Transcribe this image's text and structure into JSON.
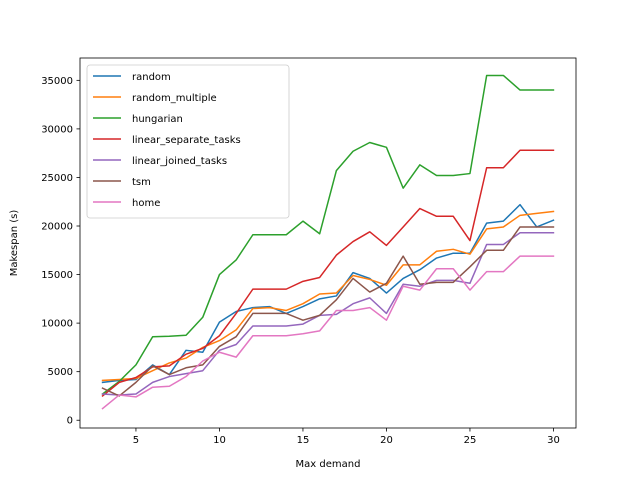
{
  "chart_data": {
    "type": "line",
    "xlabel": "Max demand",
    "ylabel": "Makespan (s)",
    "xlim": [
      1.65,
      31.35
    ],
    "ylim": [
      -800,
      37300
    ],
    "xticks": [
      5,
      10,
      15,
      20,
      25,
      30
    ],
    "yticks": [
      0,
      5000,
      10000,
      15000,
      20000,
      25000,
      30000,
      35000
    ],
    "grid": false,
    "legend_position": "top-left",
    "x": [
      3,
      4,
      5,
      6,
      7,
      8,
      9,
      10,
      11,
      12,
      13,
      14,
      15,
      16,
      17,
      18,
      19,
      20,
      21,
      22,
      23,
      24,
      25,
      26,
      27,
      28,
      29,
      30
    ],
    "series": [
      {
        "name": "random",
        "color": "#1f77b4",
        "values": [
          3900,
          4100,
          4200,
          5700,
          4700,
          7200,
          7000,
          10100,
          11200,
          11600,
          11700,
          11000,
          11700,
          12500,
          12800,
          15200,
          14600,
          13100,
          14600,
          15500,
          16700,
          17200,
          17200,
          20300,
          20500,
          22200,
          19900,
          20600
        ]
      },
      {
        "name": "random_multiple",
        "color": "#ff7f0e",
        "values": [
          4100,
          4200,
          4300,
          5100,
          5900,
          6400,
          7500,
          8200,
          9300,
          11500,
          11600,
          11300,
          12000,
          13000,
          13100,
          14900,
          14500,
          13900,
          16000,
          16000,
          17400,
          17600,
          17100,
          19700,
          19900,
          21100,
          21300,
          21500
        ]
      },
      {
        "name": "hungarian",
        "color": "#2ca02c",
        "values": [
          2700,
          4000,
          5700,
          8600,
          8650,
          8750,
          10600,
          15000,
          16500,
          19100,
          19100,
          19100,
          20500,
          19200,
          25700,
          27700,
          28600,
          28100,
          23900,
          26300,
          25200,
          25200,
          25400,
          35500,
          35500,
          34000,
          34000,
          34000
        ]
      },
      {
        "name": "linear_separate_tasks",
        "color": "#d62728",
        "values": [
          2500,
          3900,
          4400,
          5500,
          5600,
          6800,
          7400,
          8700,
          11000,
          13500,
          13500,
          13500,
          14300,
          14700,
          17000,
          18400,
          19400,
          18000,
          19900,
          21800,
          21000,
          21000,
          18500,
          26000,
          26000,
          27800,
          27800,
          27800
        ]
      },
      {
        "name": "linear_joined_tasks",
        "color": "#9467bd",
        "values": [
          2700,
          2600,
          2700,
          3900,
          4500,
          4800,
          5100,
          7200,
          7800,
          9700,
          9700,
          9700,
          9900,
          10800,
          10900,
          12000,
          12600,
          11000,
          14000,
          13800,
          14400,
          14400,
          14100,
          18100,
          18100,
          19300,
          19300,
          19300
        ]
      },
      {
        "name": "tsm",
        "color": "#8c564b",
        "values": [
          3300,
          2500,
          3900,
          5600,
          4700,
          5400,
          5700,
          7600,
          8600,
          11000,
          11000,
          11000,
          10300,
          10800,
          12400,
          14600,
          13200,
          14100,
          16900,
          14000,
          14200,
          14200,
          15800,
          17500,
          17500,
          19900,
          19900,
          19900
        ]
      },
      {
        "name": "home",
        "color": "#e377c2",
        "values": [
          1200,
          2600,
          2400,
          3400,
          3500,
          4500,
          6100,
          7000,
          6500,
          8700,
          8700,
          8700,
          8900,
          9200,
          11300,
          11300,
          11600,
          10300,
          13800,
          13400,
          15600,
          15600,
          13400,
          15300,
          15300,
          16900,
          16900,
          16900
        ]
      }
    ]
  }
}
